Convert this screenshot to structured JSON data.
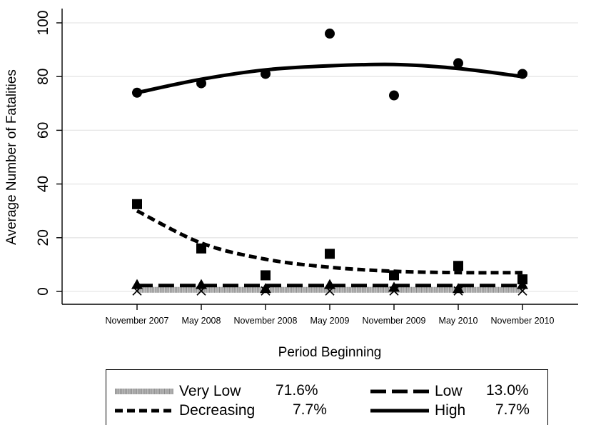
{
  "chart_data": {
    "type": "line",
    "xlabel": "Period Beginning",
    "ylabel": "Average Number of Fatalities",
    "categories": [
      "November 2007",
      "May 2008",
      "November 2008",
      "May 2009",
      "November 2009",
      "May 2010",
      "November 2010"
    ],
    "yticks": [
      "0",
      "20",
      "40",
      "60",
      "80",
      "100"
    ],
    "ylim": [
      0,
      100
    ],
    "grid": true,
    "legend_position": "bottom",
    "series": [
      {
        "name": "Very Low",
        "percent": "71.6%",
        "marker": "x",
        "line_style": "dotted-band",
        "points": [
          0.2,
          0.2,
          0.2,
          0.2,
          0.2,
          0.2,
          0.2
        ],
        "fit": [
          0.6,
          0.6,
          0.6,
          0.6,
          0.6,
          0.6,
          0.6
        ]
      },
      {
        "name": "Low",
        "percent": "13.0%",
        "marker": "triangle",
        "line_style": "long-dash",
        "points": [
          2.5,
          2.5,
          1.0,
          2.5,
          1.5,
          1.0,
          2.5
        ],
        "fit": [
          2.2,
          2.2,
          2.2,
          2.2,
          2.2,
          2.2,
          2.2
        ]
      },
      {
        "name": "Decreasing",
        "percent": "7.7%",
        "marker": "square",
        "line_style": "short-dash",
        "points": [
          32.5,
          16.0,
          6.0,
          14.0,
          6.0,
          9.5,
          4.5
        ],
        "fit": [
          30.0,
          18.0,
          12.0,
          9.0,
          7.5,
          7.0,
          7.0
        ]
      },
      {
        "name": "High",
        "percent": "7.7%",
        "marker": "circle",
        "line_style": "solid",
        "points": [
          74.0,
          77.5,
          81.0,
          96.0,
          73.0,
          85.0,
          81.0
        ],
        "fit": [
          74.0,
          79.0,
          82.5,
          84.0,
          84.5,
          83.0,
          80.0
        ]
      }
    ]
  }
}
